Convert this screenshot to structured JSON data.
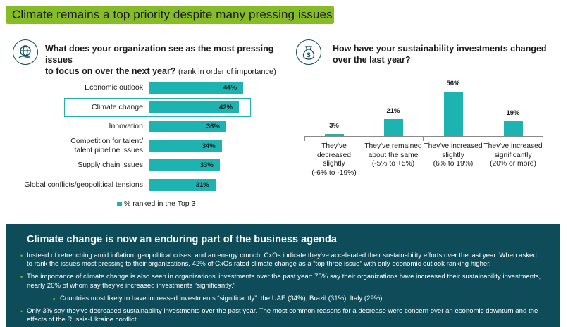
{
  "header": {
    "title": "Climate remains a top priority despite many pressing issues"
  },
  "left_question": {
    "line1": "What does your organization see as the most pressing issues",
    "line2": "to focus on over the next year?",
    "note": "(rank in order of importance)"
  },
  "right_question": {
    "line1": "How have your sustainability investments changed",
    "line2": "over the last year?"
  },
  "chart_data": [
    {
      "type": "bar",
      "orientation": "horizontal",
      "categories": [
        [
          "Economic outlook"
        ],
        [
          "Climate change"
        ],
        [
          "Innovation"
        ],
        [
          "Competition for talent/",
          "talent pipeline issues"
        ],
        [
          "Supply chain issues"
        ],
        [
          "Global conflicts/geopolitical tensions"
        ]
      ],
      "values": [
        44,
        42,
        36,
        34,
        33,
        31
      ],
      "value_labels": [
        "44%",
        "42%",
        "36%",
        "34%",
        "33%",
        "31%"
      ],
      "highlighted": "Climate change",
      "legend": "% ranked in the Top 3",
      "color": "#1cb3b1",
      "xlim": [
        0,
        44
      ]
    },
    {
      "type": "bar",
      "orientation": "vertical",
      "categories": [
        [
          "They've decreased",
          "slightly",
          "(-6% to -19%)"
        ],
        [
          "They've remained",
          "about the same",
          "(-5% to +5%)"
        ],
        [
          "They've increased",
          "slightly",
          "(6% to 19%)"
        ],
        [
          "They've increased",
          "significantly",
          "(20% or more)"
        ]
      ],
      "values": [
        3,
        21,
        56,
        19
      ],
      "value_labels": [
        "3%",
        "21%",
        "56%",
        "19%"
      ],
      "color": "#1cb3b1",
      "ylim": [
        0,
        56
      ]
    }
  ],
  "bottom": {
    "title": "Climate change is now an enduring part of the business agenda",
    "bullets": [
      "Instead of retrenching amid inflation, geopolitical crises, and an energy crunch, CxOs indicate they've accelerated their sustainability efforts over the last year. When asked to rank the issues most pressing to their organizations, 42% of CxOs rated climate change as a “top three issue” with only economic outlook ranking higher.",
      "The importance of climate change is also seen in organizations' investments over the past year: 75% say their organizations have increased their sustainability investments, nearly 20% of whom say they've increased investments “significantly.”",
      "Countries most likely to have increased investments “significantly”: the UAE (34%); Brazil (31%); Italy (29%).",
      "Only 3% say they've decreased sustainability investments over the past year. The most common reasons for a decrease were concern over an economic downturn and the effects of the Russia-Ukraine conflict."
    ],
    "bullet_marker": "•",
    "sub_bullet_marker": "▪"
  },
  "colors": {
    "accent_green": "#86bc25",
    "teal": "#1cb3b1",
    "dark_teal": "#0f4c5a"
  },
  "icons": {
    "left": "globe-hand-icon",
    "right": "money-bag-icon"
  }
}
